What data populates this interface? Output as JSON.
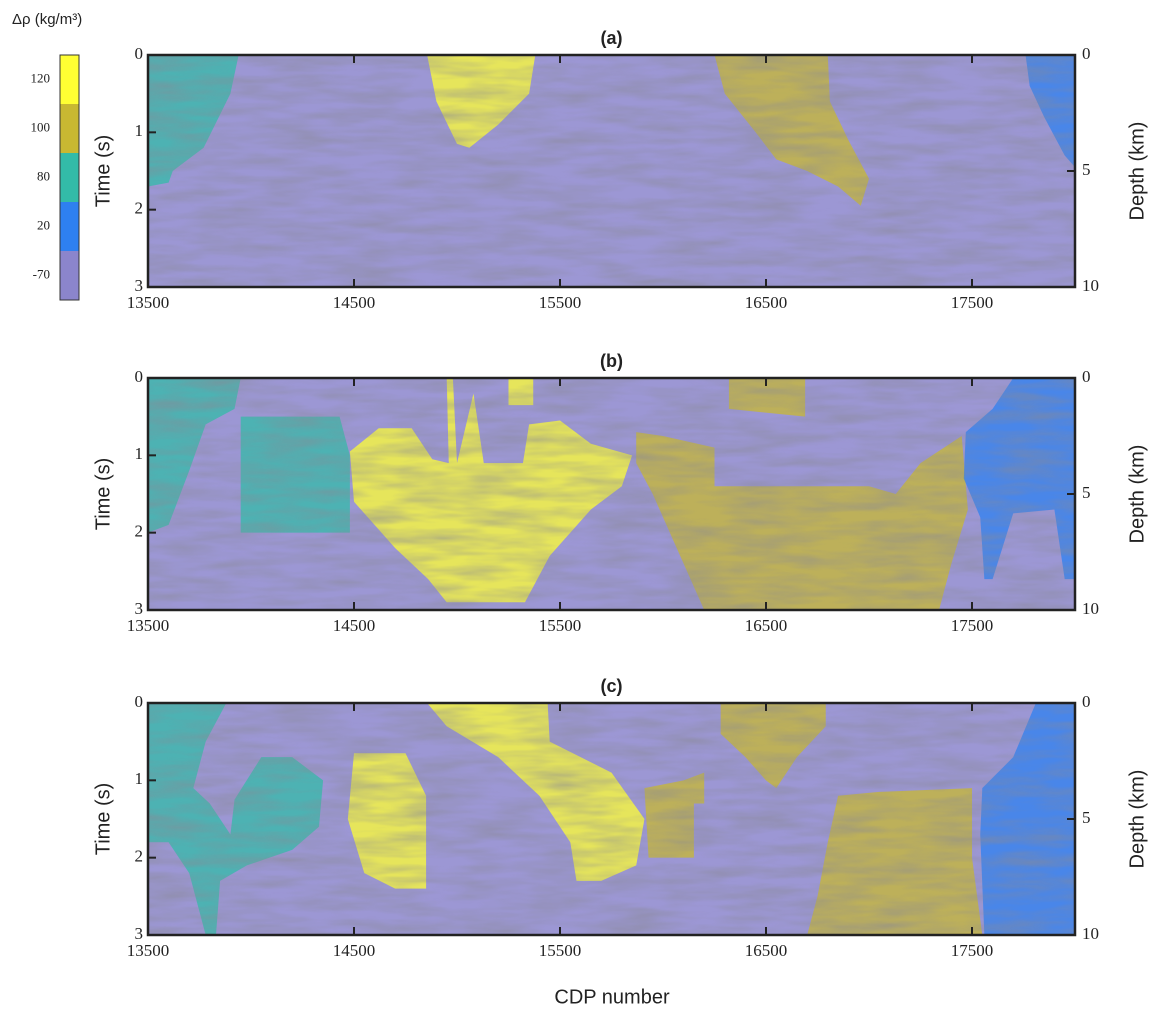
{
  "colorbar": {
    "label": "Δρ (kg/m³)",
    "classes": [
      {
        "value": 120,
        "color": "#ffff33"
      },
      {
        "value": 100,
        "color": "#c8b832"
      },
      {
        "value": 80,
        "color": "#33bba8"
      },
      {
        "value": 20,
        "color": "#2e80f0"
      },
      {
        "value": -70,
        "color": "#8b85cc"
      }
    ]
  },
  "xlabel": "CDP number",
  "chart_data": [
    {
      "type": "heatmap",
      "title": "(a)",
      "ylabel": "Time (s)",
      "y2label": "Depth (km)",
      "xlim": [
        13500,
        18000
      ],
      "xticks": [
        13500,
        14500,
        15500,
        16500,
        17500
      ],
      "ylim": [
        0,
        3
      ],
      "yticks": [
        0,
        1,
        2,
        3
      ],
      "y_inverted": true,
      "y2lim": [
        0,
        10
      ],
      "y2ticks": [
        0,
        5,
        10
      ],
      "background": -70,
      "regions": [
        {
          "value": 80,
          "points": [
            [
              13500,
              0
            ],
            [
              13940,
              0
            ],
            [
              13900,
              0.5
            ],
            [
              13770,
              1.2
            ],
            [
              13620,
              1.5
            ],
            [
              13600,
              1.65
            ],
            [
              13500,
              1.7
            ]
          ]
        },
        {
          "value": 120,
          "points": [
            [
              14855,
              0
            ],
            [
              15380,
              0
            ],
            [
              15350,
              0.5
            ],
            [
              15200,
              0.9
            ],
            [
              15060,
              1.2
            ],
            [
              15000,
              1.15
            ],
            [
              14900,
              0.6
            ]
          ]
        },
        {
          "value": 100,
          "points": [
            [
              16250,
              0
            ],
            [
              16800,
              0
            ],
            [
              16810,
              0.6
            ],
            [
              16900,
              1.1
            ],
            [
              17000,
              1.6
            ],
            [
              16960,
              1.95
            ],
            [
              16850,
              1.7
            ],
            [
              16700,
              1.5
            ],
            [
              16550,
              1.35
            ],
            [
              16450,
              1.0
            ],
            [
              16300,
              0.5
            ]
          ]
        },
        {
          "value": 20,
          "points": [
            [
              17760,
              0
            ],
            [
              18000,
              0
            ],
            [
              18000,
              1.45
            ],
            [
              17950,
              1.3
            ],
            [
              17850,
              0.8
            ],
            [
              17780,
              0.4
            ]
          ]
        }
      ]
    },
    {
      "type": "heatmap",
      "title": "(b)",
      "ylabel": "Time (s)",
      "y2label": "Depth (km)",
      "xlim": [
        13500,
        18000
      ],
      "xticks": [
        13500,
        14500,
        15500,
        16500,
        17500
      ],
      "ylim": [
        0,
        3
      ],
      "yticks": [
        0,
        1,
        2,
        3
      ],
      "y_inverted": true,
      "y2lim": [
        0,
        10
      ],
      "y2ticks": [
        0,
        5,
        10
      ],
      "background": -70,
      "regions": [
        {
          "value": 80,
          "points": [
            [
              13500,
              0
            ],
            [
              13950,
              0
            ],
            [
              13920,
              0.4
            ],
            [
              13780,
              0.6
            ],
            [
              13700,
              1.2
            ],
            [
              13600,
              1.9
            ],
            [
              13500,
              2.0
            ]
          ]
        },
        {
          "value": 80,
          "points": [
            [
              13950,
              0.5
            ],
            [
              14430,
              0.5
            ],
            [
              14480,
              1.0
            ],
            [
              14480,
              2.0
            ],
            [
              13950,
              2.0
            ]
          ]
        },
        {
          "value": 120,
          "points": [
            [
              14480,
              0.95
            ],
            [
              14620,
              0.65
            ],
            [
              14780,
              0.65
            ],
            [
              14880,
              1.05
            ],
            [
              14960,
              1.1
            ],
            [
              14950,
              0
            ],
            [
              14980,
              0
            ],
            [
              15000,
              1.1
            ],
            [
              15080,
              0.2
            ],
            [
              15130,
              1.1
            ],
            [
              15320,
              1.1
            ],
            [
              15350,
              0.6
            ],
            [
              15500,
              0.55
            ],
            [
              15650,
              0.85
            ],
            [
              15850,
              1.0
            ],
            [
              15800,
              1.4
            ],
            [
              15650,
              1.7
            ],
            [
              15450,
              2.3
            ],
            [
              15330,
              2.9
            ],
            [
              14950,
              2.9
            ],
            [
              14860,
              2.6
            ],
            [
              14700,
              2.2
            ],
            [
              14500,
              1.6
            ]
          ]
        },
        {
          "value": 120,
          "points": [
            [
              15250,
              0
            ],
            [
              15370,
              0
            ],
            [
              15370,
              0.35
            ],
            [
              15250,
              0.35
            ]
          ]
        },
        {
          "value": 100,
          "points": [
            [
              15870,
              0.7
            ],
            [
              16000,
              0.75
            ],
            [
              16250,
              0.9
            ],
            [
              16250,
              1.4
            ],
            [
              17000,
              1.4
            ],
            [
              17130,
              1.5
            ],
            [
              17250,
              1.1
            ],
            [
              17450,
              0.75
            ],
            [
              17480,
              1.7
            ],
            [
              17400,
              2.4
            ],
            [
              17340,
              3.0
            ],
            [
              16200,
              3.0
            ],
            [
              16050,
              2.1
            ],
            [
              15950,
              1.5
            ],
            [
              15870,
              1.1
            ]
          ]
        },
        {
          "value": 100,
          "points": [
            [
              16320,
              0
            ],
            [
              16690,
              0
            ],
            [
              16690,
              0.5
            ],
            [
              16320,
              0.4
            ]
          ]
        },
        {
          "value": 20,
          "points": [
            [
              17700,
              0
            ],
            [
              18000,
              0
            ],
            [
              18000,
              2.6
            ],
            [
              17950,
              2.6
            ],
            [
              17900,
              1.7
            ],
            [
              17700,
              1.75
            ],
            [
              17600,
              2.6
            ],
            [
              17560,
              2.6
            ],
            [
              17540,
              1.8
            ],
            [
              17460,
              1.3
            ],
            [
              17470,
              0.7
            ],
            [
              17600,
              0.4
            ]
          ]
        }
      ]
    },
    {
      "type": "heatmap",
      "title": "(c)",
      "ylabel": "Time (s)",
      "y2label": "Depth (km)",
      "xlim": [
        13500,
        18000
      ],
      "xticks": [
        13500,
        14500,
        15500,
        16500,
        17500
      ],
      "ylim": [
        0,
        3
      ],
      "yticks": [
        0,
        1,
        2,
        3
      ],
      "y_inverted": true,
      "y2lim": [
        0,
        10
      ],
      "y2ticks": [
        0,
        5,
        10
      ],
      "background": -70,
      "regions": [
        {
          "value": 80,
          "points": [
            [
              13500,
              0
            ],
            [
              13880,
              0
            ],
            [
              13780,
              0.5
            ],
            [
              13720,
              1.1
            ],
            [
              13800,
              1.3
            ],
            [
              13900,
              1.7
            ],
            [
              13920,
              1.25
            ],
            [
              14050,
              0.7
            ],
            [
              14200,
              0.7
            ],
            [
              14350,
              1.0
            ],
            [
              14330,
              1.6
            ],
            [
              14200,
              1.9
            ],
            [
              13980,
              2.1
            ],
            [
              13850,
              2.3
            ],
            [
              13830,
              3.0
            ],
            [
              13780,
              3.0
            ],
            [
              13700,
              2.2
            ],
            [
              13600,
              1.8
            ],
            [
              13500,
              1.8
            ]
          ]
        },
        {
          "value": 120,
          "points": [
            [
              14500,
              0.65
            ],
            [
              14750,
              0.65
            ],
            [
              14850,
              1.2
            ],
            [
              14850,
              2.4
            ],
            [
              14700,
              2.4
            ],
            [
              14550,
              2.2
            ],
            [
              14470,
              1.5
            ]
          ]
        },
        {
          "value": 120,
          "points": [
            [
              14855,
              0
            ],
            [
              15440,
              0
            ],
            [
              15450,
              0.5
            ],
            [
              15750,
              0.9
            ],
            [
              15910,
              1.5
            ],
            [
              15870,
              2.1
            ],
            [
              15700,
              2.3
            ],
            [
              15580,
              2.3
            ],
            [
              15550,
              1.8
            ],
            [
              15400,
              1.2
            ],
            [
              15200,
              0.7
            ],
            [
              14950,
              0.3
            ]
          ]
        },
        {
          "value": 100,
          "points": [
            [
              15910,
              1.1
            ],
            [
              16100,
              1.0
            ],
            [
              16200,
              0.9
            ],
            [
              16200,
              1.3
            ],
            [
              16150,
              1.3
            ],
            [
              16150,
              2.0
            ],
            [
              15930,
              2.0
            ]
          ]
        },
        {
          "value": 100,
          "points": [
            [
              16280,
              0
            ],
            [
              16790,
              0
            ],
            [
              16790,
              0.3
            ],
            [
              16650,
              0.7
            ],
            [
              16550,
              1.1
            ],
            [
              16500,
              1.0
            ],
            [
              16400,
              0.7
            ],
            [
              16280,
              0.4
            ]
          ]
        },
        {
          "value": 100,
          "points": [
            [
              16850,
              1.2
            ],
            [
              17050,
              1.15
            ],
            [
              17500,
              1.1
            ],
            [
              17500,
              2.0
            ],
            [
              17550,
              3.0
            ],
            [
              16700,
              3.0
            ],
            [
              16750,
              2.5
            ],
            [
              16800,
              1.8
            ]
          ]
        },
        {
          "value": 20,
          "points": [
            [
              17810,
              0
            ],
            [
              18000,
              0
            ],
            [
              18000,
              3.0
            ],
            [
              17560,
              3.0
            ],
            [
              17540,
              1.7
            ],
            [
              17550,
              1.1
            ],
            [
              17700,
              0.7
            ]
          ]
        }
      ]
    }
  ]
}
